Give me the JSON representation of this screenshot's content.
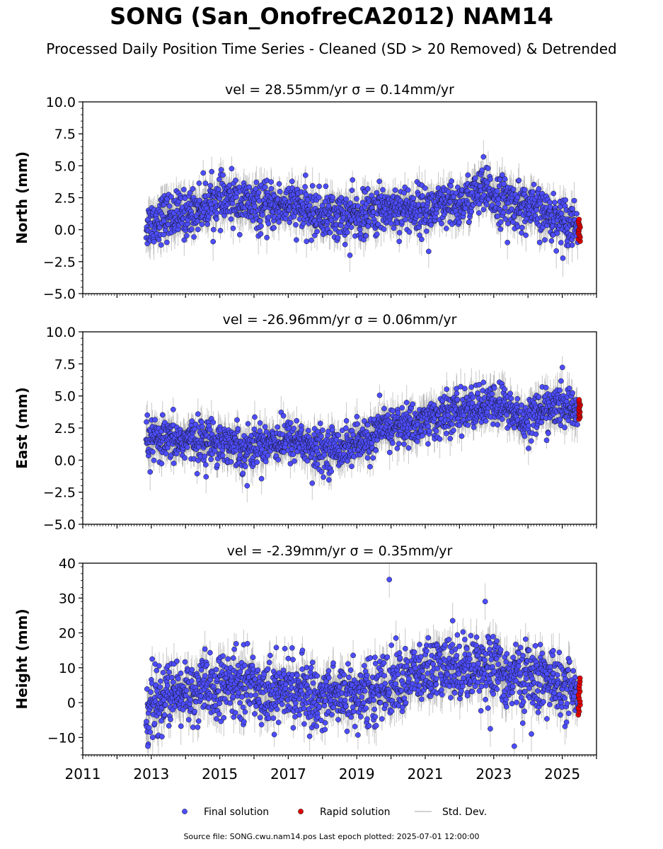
{
  "header": {
    "title": "SONG (San_OnofreCA2012) NAM14",
    "subtitle": "Processed Daily Position Time Series - Cleaned (SD > 20 Removed) & Detrended"
  },
  "legend": {
    "placement": "bottom-center",
    "final_label": "Final solution",
    "rapid_label": "Rapid solution",
    "sd_label": "Std. Dev."
  },
  "footer": {
    "source": "Source file: SONG.cwu.nam14.pos  Last epoch plotted: 2025-07-01 12:00:00"
  },
  "colors": {
    "final": "#4d4dff",
    "rapid": "#e00000",
    "sd": "#9a9a9a"
  },
  "chart_data": [
    {
      "type": "scatter",
      "title": "vel = 28.55mm/yr   σ = 0.14mm/yr",
      "ylabel": "North (mm)",
      "xlim": [
        2011,
        2026
      ],
      "ylim": [
        -5,
        10
      ],
      "yticks": [
        "−5.0",
        "−2.5",
        "0.0",
        "2.5",
        "5.0",
        "7.5",
        "10.0"
      ],
      "ytick_values": [
        -5,
        -2.5,
        0,
        2.5,
        5,
        7.5,
        10
      ],
      "series_profile": {
        "x": [
          2012.85,
          2013.3,
          2014.0,
          2014.8,
          2015.5,
          2016.2,
          2017.0,
          2017.7,
          2018.5,
          2019.2,
          2019.9,
          2020.6,
          2021.3,
          2022.0,
          2022.6,
          2023.0,
          2023.6,
          2024.2,
          2024.8,
          2025.45
        ],
        "y": [
          0.3,
          1.0,
          1.2,
          2.2,
          2.3,
          1.6,
          2.0,
          1.3,
          1.0,
          1.1,
          1.7,
          1.6,
          1.6,
          1.9,
          3.0,
          2.6,
          2.0,
          1.5,
          0.9,
          0.5
        ],
        "scatter_sd": 0.9,
        "error_sd": 1.0
      },
      "outliers": [
        [
          2022.7,
          5.7
        ],
        [
          2018.8,
          -2.0
        ],
        [
          2021.1,
          -1.7
        ],
        [
          2023.4,
          -1.0
        ]
      ],
      "rapid": {
        "x": 2025.5,
        "y_range": [
          -0.9,
          0.8
        ]
      }
    },
    {
      "type": "scatter",
      "title": "vel = -26.96mm/yr   σ = 0.06mm/yr",
      "ylabel": "East (mm)",
      "xlim": [
        2011,
        2026
      ],
      "ylim": [
        -5,
        10
      ],
      "yticks": [
        "−5.0",
        "−2.5",
        "0.0",
        "2.5",
        "5.0",
        "7.5",
        "10.0"
      ],
      "ytick_values": [
        -5,
        -2.5,
        0,
        2.5,
        5,
        7.5,
        10
      ],
      "series_profile": {
        "x": [
          2012.85,
          2013.5,
          2014.3,
          2015.0,
          2015.8,
          2016.5,
          2017.3,
          2017.8,
          2018.5,
          2019.2,
          2019.9,
          2020.6,
          2021.3,
          2022.0,
          2022.7,
          2023.3,
          2023.8,
          2024.4,
          2025.0,
          2025.45
        ],
        "y": [
          1.5,
          1.4,
          1.6,
          1.5,
          0.9,
          1.5,
          1.6,
          0.7,
          1.0,
          1.4,
          2.6,
          2.7,
          3.3,
          3.8,
          4.2,
          4.3,
          3.1,
          3.9,
          4.2,
          4.0
        ],
        "scatter_sd": 0.8,
        "error_sd": 1.0
      },
      "outliers": [
        [
          2015.8,
          -2.0
        ],
        [
          2014.6,
          -1.3
        ],
        [
          2017.7,
          -1.8
        ]
      ],
      "rapid": {
        "x": 2025.5,
        "y_range": [
          3.2,
          4.7
        ]
      }
    },
    {
      "type": "scatter",
      "title": "vel = -2.39mm/yr   σ = 0.35mm/yr",
      "ylabel": "Height (mm)",
      "xlim": [
        2011,
        2026
      ],
      "ylim": [
        -15,
        40
      ],
      "yticks": [
        "−10",
        "0",
        "10",
        "20",
        "30",
        "40"
      ],
      "ytick_values": [
        -10,
        0,
        10,
        20,
        30,
        40
      ],
      "xticks": [
        "2011",
        "2013",
        "2015",
        "2017",
        "2019",
        "2021",
        "2023",
        "2025"
      ],
      "xtick_values": [
        2011,
        2013,
        2015,
        2017,
        2019,
        2021,
        2023,
        2025
      ],
      "series_profile": {
        "x": [
          2012.85,
          2013.5,
          2014.3,
          2015.0,
          2015.7,
          2016.4,
          2017.1,
          2017.8,
          2018.5,
          2019.2,
          2019.9,
          2020.6,
          2021.3,
          2022.0,
          2022.7,
          2023.3,
          2024.0,
          2024.6,
          2025.2,
          2025.45
        ],
        "y": [
          -2.0,
          2.0,
          3.5,
          4.0,
          6.0,
          3.0,
          4.0,
          1.0,
          3.0,
          2.0,
          5.0,
          7.5,
          9.0,
          10.0,
          11.0,
          8.0,
          7.0,
          6.5,
          3.0,
          2.0
        ],
        "scatter_sd": 4.5,
        "error_sd": 4.0
      },
      "outliers": [
        [
          2019.95,
          35.3
        ],
        [
          2022.75,
          29.0
        ],
        [
          2021.8,
          23.5
        ],
        [
          2023.6,
          -12.5
        ],
        [
          2024.1,
          -9.0
        ],
        [
          2022.9,
          -7.5
        ],
        [
          2012.9,
          -12.5
        ]
      ],
      "rapid": {
        "x": 2025.5,
        "y_range": [
          -3.5,
          7.0
        ]
      }
    }
  ]
}
